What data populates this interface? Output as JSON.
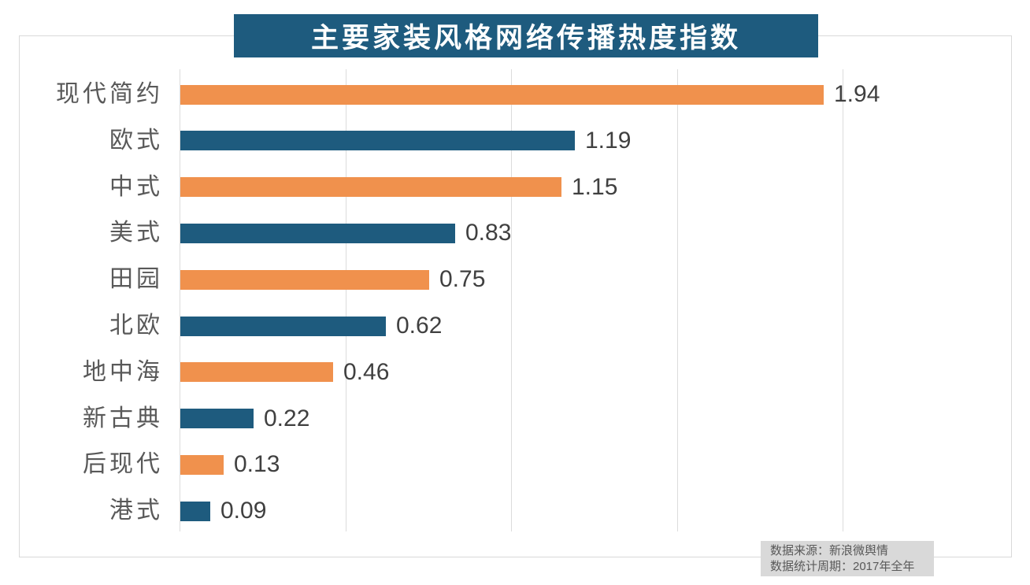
{
  "title": "主要家装风格网络传播热度指数",
  "colors": {
    "title_bg": "#1E5B7E",
    "title_text": "#FFFFFF",
    "bar_orange": "#F0914D",
    "bar_teal": "#1E5B7E",
    "grid": "#DCDCDC",
    "frame_border": "#D9D9D9",
    "category_text": "#595959",
    "value_text": "#404040",
    "footer_bg": "#D9D9D9",
    "footer_text": "#595959",
    "background": "#FFFFFF"
  },
  "footer": {
    "line1": "数据来源：新浪微舆情",
    "line2": "数据统计周期：2017年全年"
  },
  "chart_data": {
    "type": "bar",
    "orientation": "horizontal",
    "title": "主要家装风格网络传播热度指数",
    "categories": [
      "现代简约",
      "欧式",
      "中式",
      "美式",
      "田园",
      "北欧",
      "地中海",
      "新古典",
      "后现代",
      "港式"
    ],
    "values": [
      1.94,
      1.19,
      1.15,
      0.83,
      0.75,
      0.62,
      0.46,
      0.22,
      0.13,
      0.09
    ],
    "value_labels": [
      "1.94",
      "1.19",
      "1.15",
      "0.83",
      "0.75",
      "0.62",
      "0.46",
      "0.22",
      "0.13",
      "0.09"
    ],
    "bar_colors_alternate": [
      "#F0914D",
      "#1E5B7E"
    ],
    "xlim": [
      0,
      2.5
    ],
    "gridline_values": [
      0,
      0.5,
      1.0,
      1.5,
      2.0
    ],
    "grid": "vertical-only",
    "axis_tick_labels_shown": false,
    "legend": "none",
    "data_source_note": "数据来源：新浪微舆情",
    "period_note": "数据统计周期：2017年全年"
  }
}
